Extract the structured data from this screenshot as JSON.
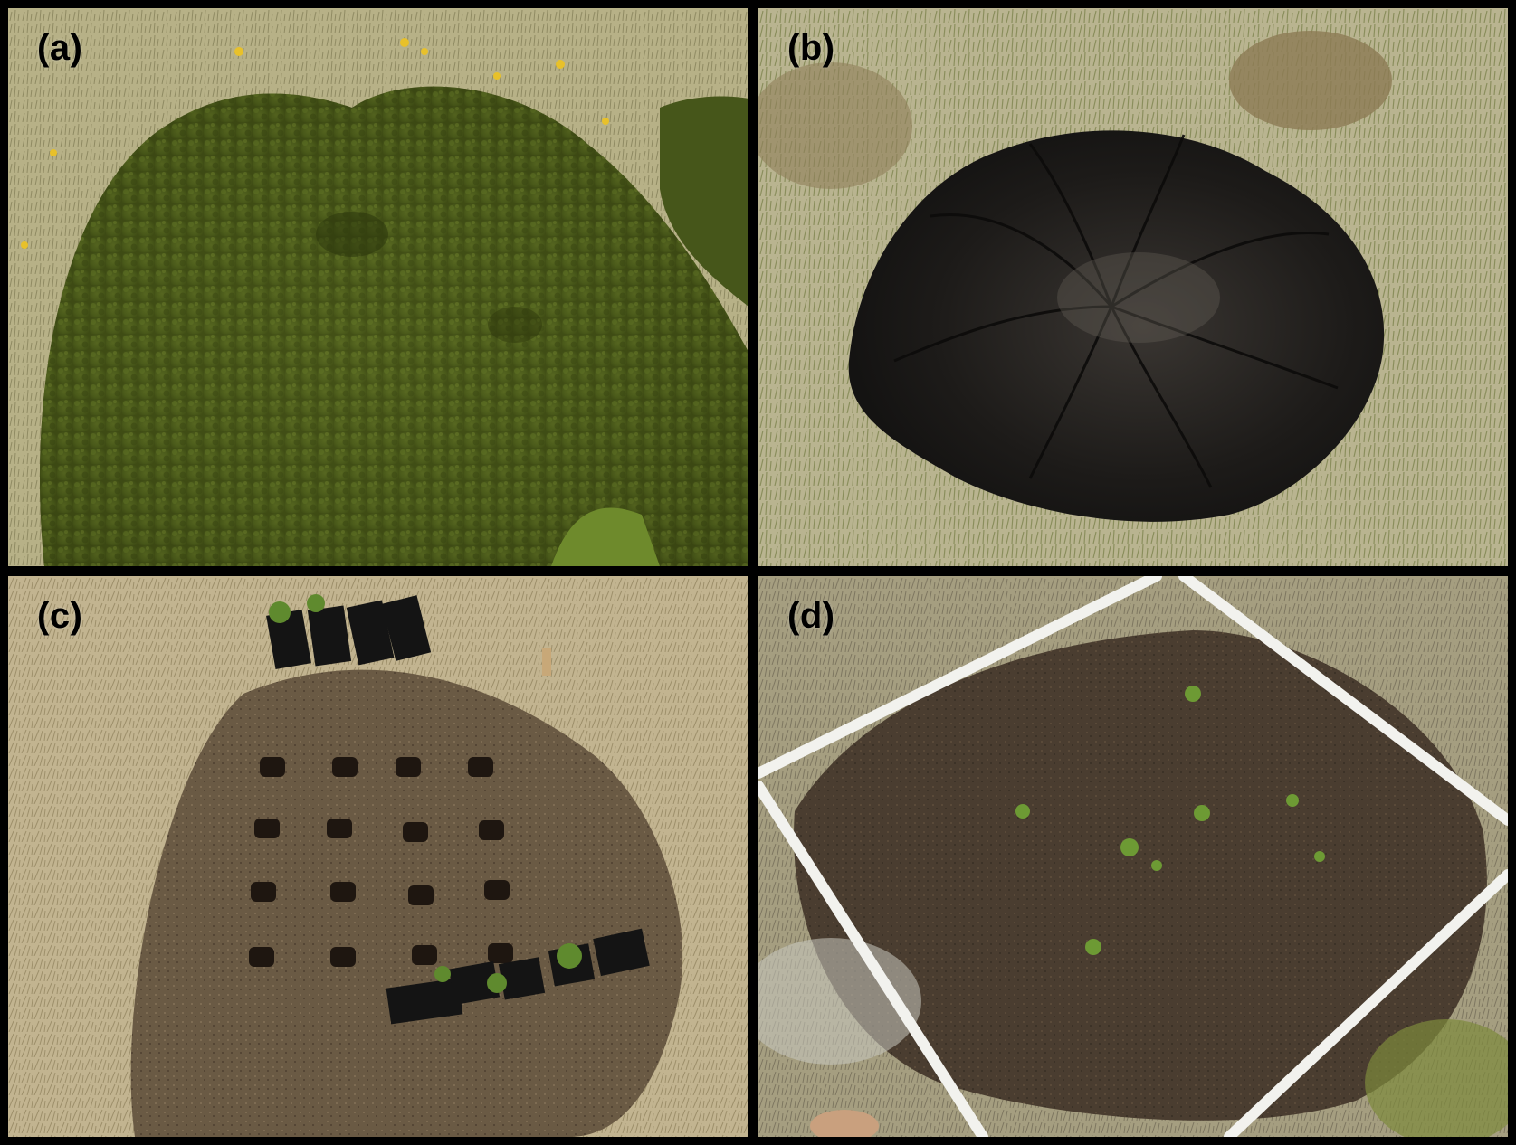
{
  "panels": [
    {
      "label": "(a)"
    },
    {
      "label": "(b)"
    },
    {
      "label": "(c)"
    },
    {
      "label": "(d)"
    }
  ],
  "colors": {
    "frame": "#000000",
    "grass_light": "#b3ad83",
    "shrub_green": "#4f5c1c",
    "burnt": "#1c1a18",
    "bare_soil": "#5c4a36",
    "pvc_white": "#f2f2ee"
  }
}
